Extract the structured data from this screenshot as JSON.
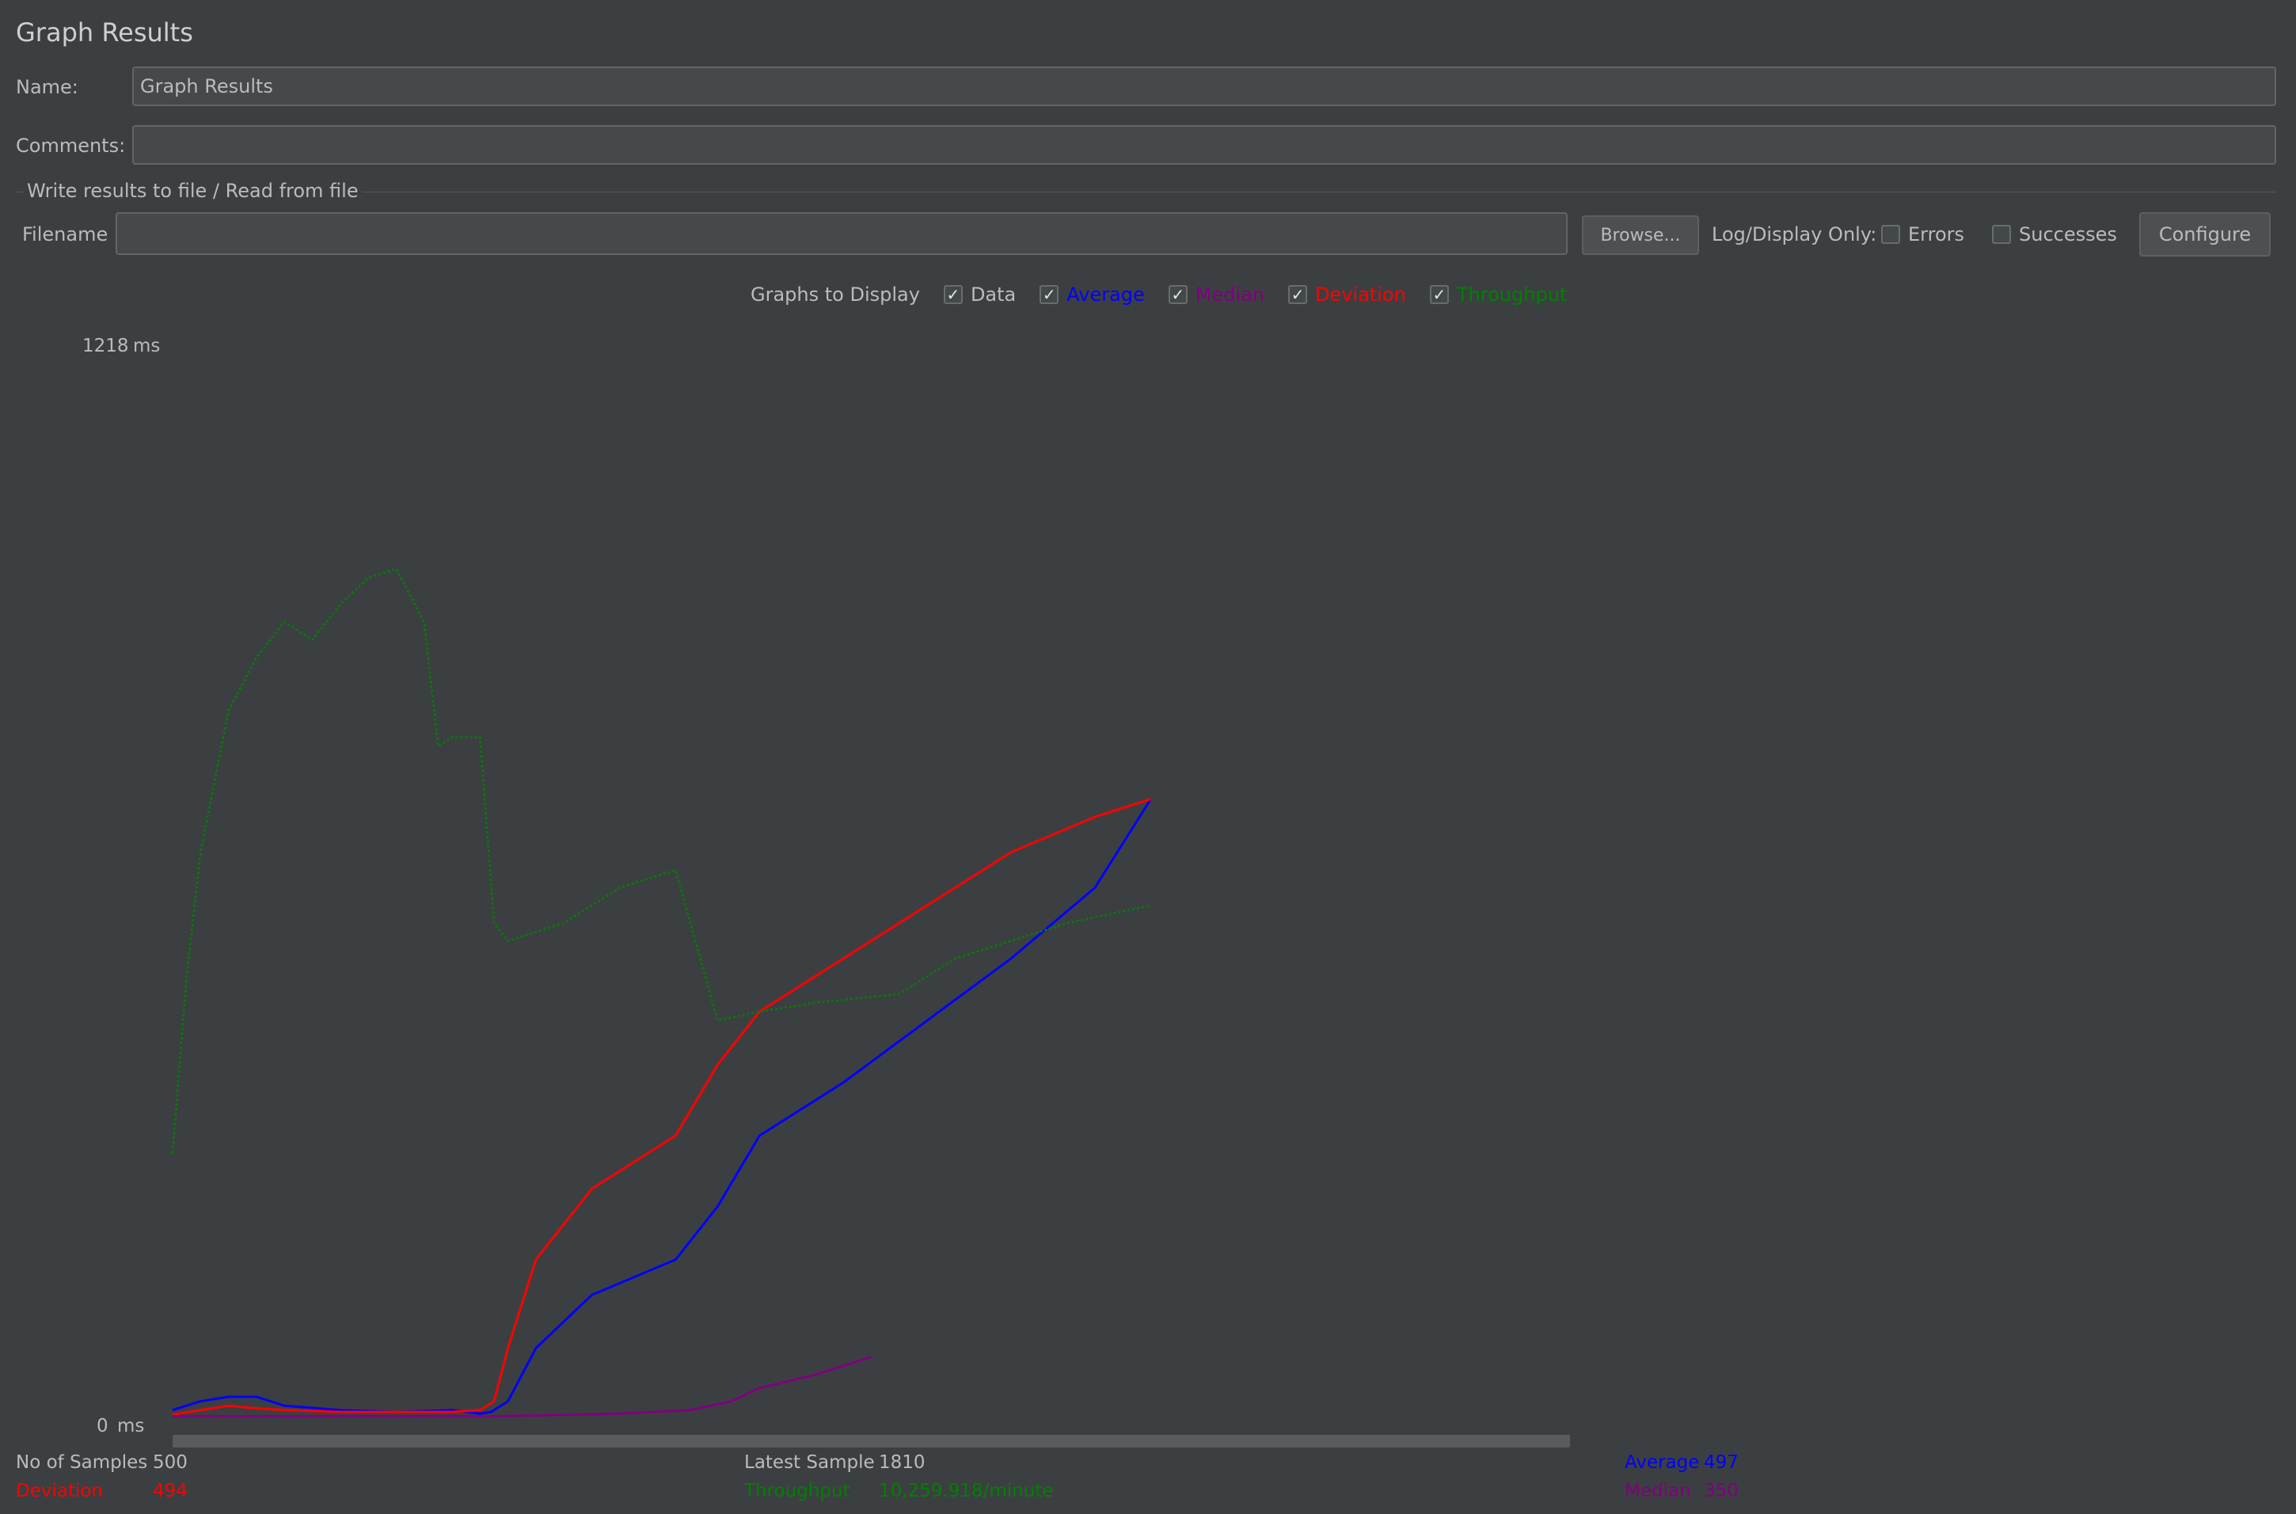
{
  "window": {
    "title": "Graph Results"
  },
  "form": {
    "name_label": "Name:",
    "name_value": "Graph Results",
    "comments_label": "Comments:",
    "comments_value": "",
    "file_section_title": "Write results to file / Read from file",
    "filename_label": "Filename",
    "filename_value": "",
    "browse_label": "Browse...",
    "log_display_label": "Log/Display Only:",
    "errors_label": "Errors",
    "successes_label": "Successes",
    "configure_label": "Configure"
  },
  "graphs_to_display": {
    "label": "Graphs to Display",
    "options": [
      {
        "label": "Data",
        "checked": true,
        "color": "#000000"
      },
      {
        "label": "Average",
        "checked": true,
        "color": "#0000ff"
      },
      {
        "label": "Median",
        "checked": true,
        "color": "#800080"
      },
      {
        "label": "Deviation",
        "checked": true,
        "color": "#ff0000"
      },
      {
        "label": "Throughput",
        "checked": true,
        "color": "#008000"
      }
    ]
  },
  "chart_data": {
    "type": "line",
    "y_max_label": "1218",
    "y_min_label": "0",
    "y_unit": "ms",
    "ylim": [
      0,
      1218
    ],
    "xlim": [
      0,
      500
    ],
    "grid": false,
    "series": [
      {
        "name": "Average",
        "color": "#0000ff",
        "x": [
          0,
          10,
          20,
          30,
          40,
          60,
          80,
          100,
          110,
          114,
          120,
          130,
          150,
          180,
          195,
          210,
          240,
          270,
          300,
          330,
          350
        ],
        "values": [
          10,
          20,
          25,
          25,
          15,
          10,
          8,
          10,
          6,
          8,
          20,
          80,
          140,
          180,
          240,
          320,
          380,
          450,
          520,
          600,
          700
        ]
      },
      {
        "name": "Deviation",
        "color": "#ff0000",
        "x": [
          0,
          10,
          20,
          30,
          40,
          60,
          80,
          100,
          110,
          115,
          120,
          130,
          150,
          170,
          180,
          195,
          210,
          240,
          270,
          300,
          330,
          350
        ],
        "values": [
          5,
          10,
          15,
          12,
          10,
          8,
          8,
          8,
          10,
          20,
          80,
          180,
          260,
          300,
          320,
          400,
          460,
          520,
          580,
          640,
          680,
          700
        ]
      },
      {
        "name": "Median",
        "color": "#800080",
        "x": [
          0,
          50,
          100,
          114,
          130,
          160,
          185,
          200,
          210,
          230,
          250
        ],
        "values": [
          3,
          3,
          3,
          3,
          4,
          6,
          10,
          20,
          35,
          50,
          70
        ]
      },
      {
        "name": "Throughput",
        "color": "#008000",
        "x": [
          0,
          5,
          10,
          20,
          30,
          40,
          50,
          60,
          70,
          80,
          90,
          95,
          100,
          110,
          115,
          120,
          140,
          160,
          180,
          195,
          210,
          230,
          260,
          280,
          300,
          320,
          350
        ],
        "values": [
          300,
          500,
          640,
          800,
          860,
          900,
          880,
          920,
          950,
          960,
          900,
          760,
          770,
          770,
          560,
          540,
          560,
          600,
          620,
          450,
          460,
          470,
          480,
          520,
          540,
          560,
          580
        ]
      }
    ],
    "stats": {
      "no_of_samples_label": "No of Samples",
      "no_of_samples": "500",
      "latest_sample_label": "Latest Sample",
      "latest_sample": "1810",
      "average_label": "Average",
      "average": "497",
      "deviation_label": "Deviation",
      "deviation": "494",
      "throughput_label": "Throughput",
      "throughput": "10,259.918/minute",
      "median_label": "Median",
      "median": "350"
    }
  }
}
